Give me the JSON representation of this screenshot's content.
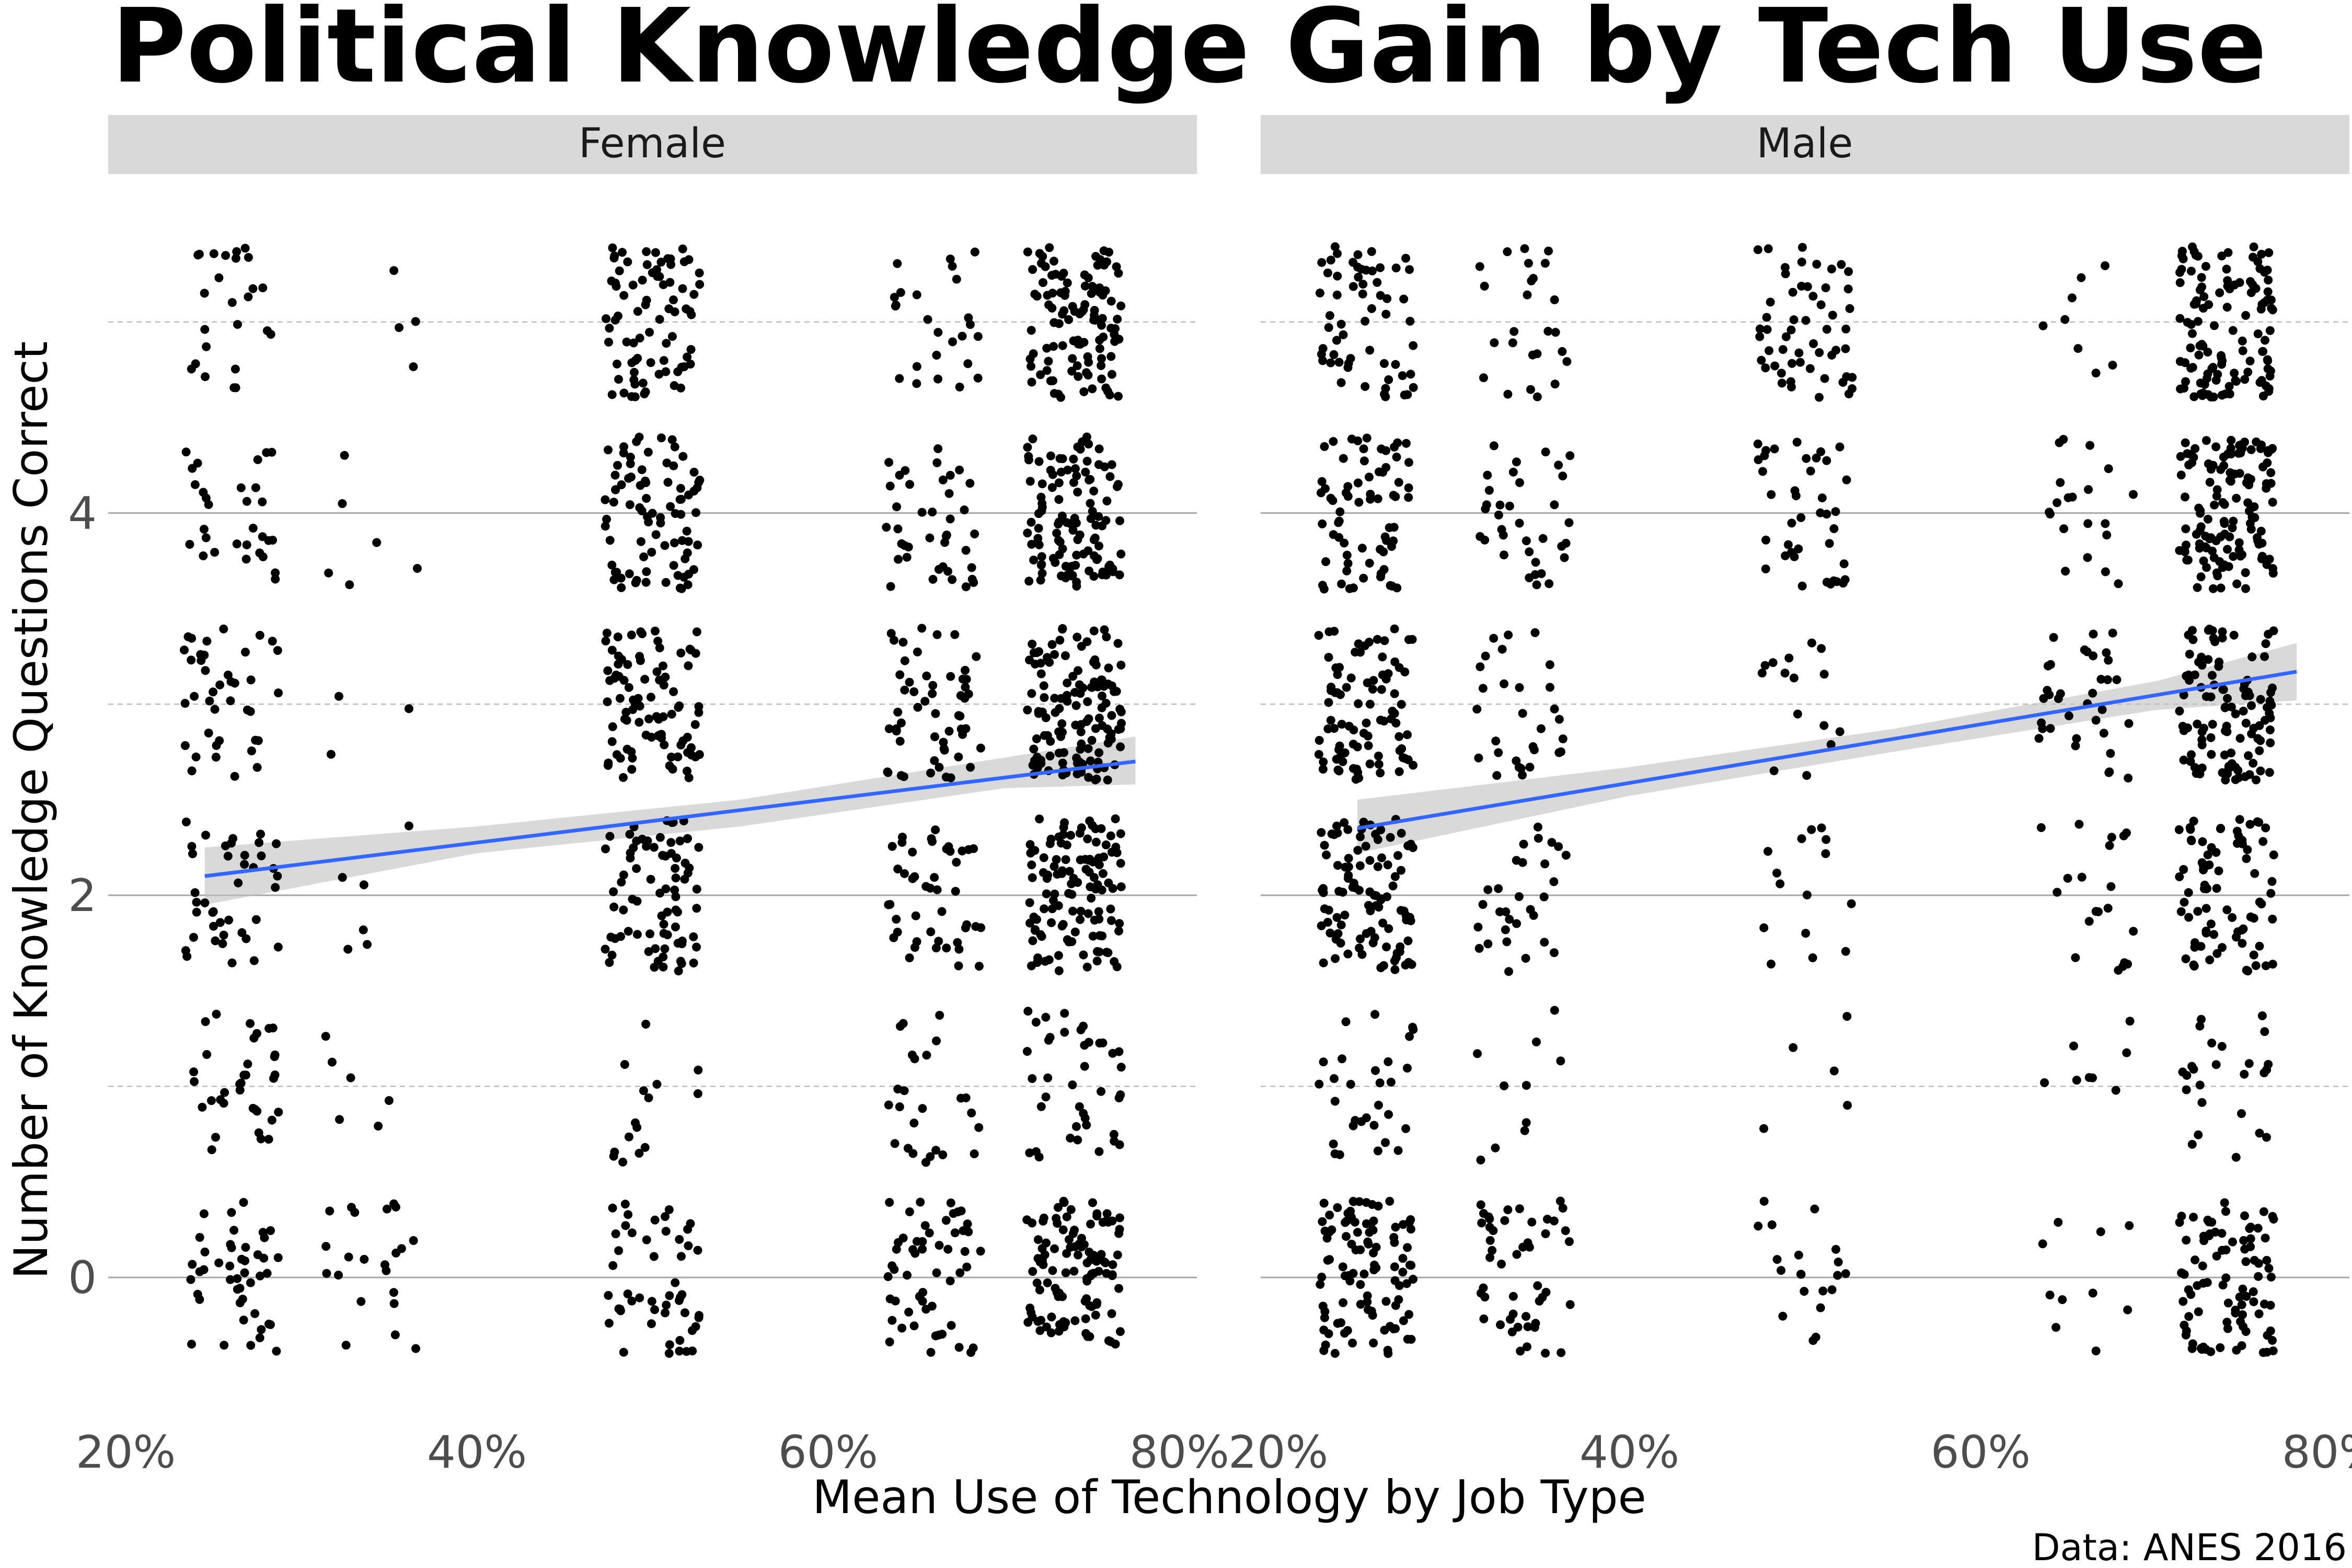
{
  "chart_data": {
    "type": "scatter",
    "title": "Political Knowledge Gain by Tech Use",
    "xlabel": "Mean Use of Technology by Job Type",
    "ylabel": "Number of Knowledge Questions Correct",
    "caption": "Data: ANES 2016",
    "xlim": [
      0.19,
      0.81
    ],
    "ylim": [
      -0.7,
      5.7
    ],
    "x_ticks": [
      0.2,
      0.4,
      0.6,
      0.8
    ],
    "x_tick_labels": [
      "20%",
      "40%",
      "60%",
      "80%"
    ],
    "y_ticks": [
      0,
      2,
      4
    ],
    "y_tick_labels": [
      "0",
      "2",
      "4"
    ],
    "grid": "major y solid, minor y dashed",
    "point_color": "#000000",
    "fit_color": "#3366FF",
    "band_color": "#BFBFBF",
    "panels": [
      {
        "name": "Female",
        "clusters": [
          {
            "x": 0.26,
            "counts": [
              45,
              35,
              40,
              40,
              30,
              25
            ]
          },
          {
            "x": 0.34,
            "counts": [
              22,
              6,
              6,
              3,
              6,
              4
            ]
          },
          {
            "x": 0.5,
            "counts": [
              50,
              15,
              80,
              90,
              85,
              80
            ]
          },
          {
            "x": 0.66,
            "counts": [
              55,
              25,
              45,
              55,
              40,
              25
            ]
          },
          {
            "x": 0.74,
            "counts": [
              110,
              40,
              120,
              130,
              115,
              110
            ]
          }
        ],
        "fit": {
          "x": [
            0.245,
            0.775
          ],
          "y": [
            2.1,
            2.7
          ]
        },
        "band": {
          "x": [
            0.245,
            0.4,
            0.55,
            0.7,
            0.775
          ],
          "lower": [
            1.95,
            2.22,
            2.36,
            2.56,
            2.58
          ],
          "upper": [
            2.25,
            2.36,
            2.5,
            2.72,
            2.83
          ]
        }
      },
      {
        "name": "Male",
        "clusters": [
          {
            "x": 0.25,
            "counts": [
              100,
              30,
              100,
              90,
              70,
              60
            ]
          },
          {
            "x": 0.34,
            "counts": [
              50,
              10,
              30,
              30,
              35,
              25
            ]
          },
          {
            "x": 0.5,
            "counts": [
              20,
              5,
              15,
              15,
              40,
              55
            ]
          },
          {
            "x": 0.66,
            "counts": [
              10,
              8,
              20,
              35,
              20,
              8
            ]
          },
          {
            "x": 0.74,
            "counts": [
              90,
              25,
              80,
              110,
              130,
              120
            ]
          }
        ],
        "fit": {
          "x": [
            0.245,
            0.78
          ],
          "y": [
            2.35,
            3.17
          ]
        },
        "band": {
          "x": [
            0.245,
            0.4,
            0.55,
            0.7,
            0.78
          ],
          "lower": [
            2.22,
            2.52,
            2.75,
            2.97,
            3.02
          ],
          "upper": [
            2.5,
            2.67,
            2.87,
            3.12,
            3.32
          ]
        }
      }
    ]
  }
}
